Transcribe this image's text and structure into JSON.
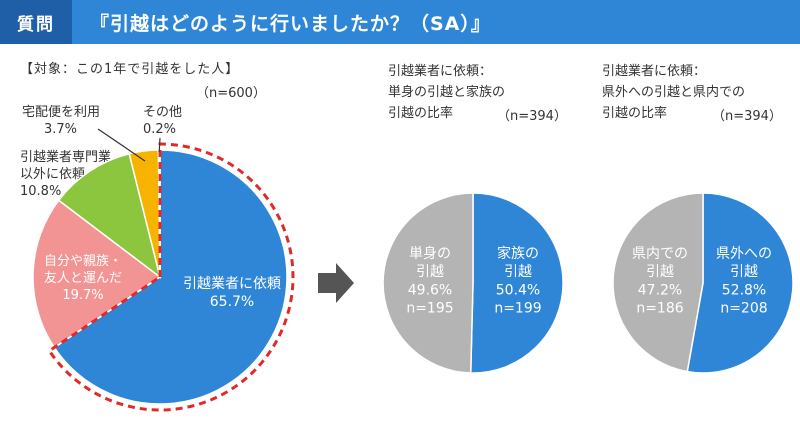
{
  "header": {
    "tag": "質問",
    "title": "『引越はどのように行いましたか？（SA）』"
  },
  "chart_data": [
    {
      "type": "pie",
      "subtitle": "【対象：この1年で引越をした人】",
      "n_label": "（n=600）",
      "slices": [
        {
          "label": "引越業者に依頼",
          "value": 65.7,
          "value_label": "65.7%",
          "color": "#2f86d6"
        },
        {
          "label": "自分や親族・友人と運んだ",
          "label_lines": [
            "自分や親族・",
            "友人と運んだ"
          ],
          "value": 19.7,
          "value_label": "19.7%",
          "color": "#f29494"
        },
        {
          "label": "引越業者専門業以外に依頼",
          "label_lines": [
            "引越業者専門業",
            "以外に依頼"
          ],
          "value": 10.8,
          "value_label": "10.8%",
          "color": "#8cc63f"
        },
        {
          "label": "宅配便を利用",
          "value": 3.7,
          "value_label": "3.7%",
          "color": "#f6b400"
        },
        {
          "label": "その他",
          "value": 0.2,
          "value_label": "0.2%",
          "color": "#d8d8d8"
        }
      ]
    },
    {
      "type": "pie",
      "title_lines": [
        "引越業者に依頼：",
        "単身の引越と家族の",
        "引越の比率"
      ],
      "n_label": "（n=394）",
      "slices": [
        {
          "label": "家族の引越",
          "label_lines": [
            "家族の",
            "引越"
          ],
          "value": 50.4,
          "value_label": "50.4%",
          "n": "n=199",
          "color": "#2f86d6"
        },
        {
          "label": "単身の引越",
          "label_lines": [
            "単身の",
            "引越"
          ],
          "value": 49.6,
          "value_label": "49.6%",
          "n": "n=195",
          "color": "#b4b4b4"
        }
      ]
    },
    {
      "type": "pie",
      "title_lines": [
        "引越業者に依頼：",
        "県外への引越と県内での",
        "引越の比率"
      ],
      "n_label": "（n=394）",
      "slices": [
        {
          "label": "県外への引越",
          "label_lines": [
            "県外への",
            "引越"
          ],
          "value": 52.8,
          "value_label": "52.8%",
          "n": "n=208",
          "color": "#2f86d6"
        },
        {
          "label": "県内での引越",
          "label_lines": [
            "県内での",
            "引越"
          ],
          "value": 47.2,
          "value_label": "47.2%",
          "n": "n=186",
          "color": "#b4b4b4"
        }
      ]
    }
  ],
  "colors": {
    "header": "#2f86d6",
    "header_tag": "#1f5fa8",
    "highlight_ring": "#e02a2a",
    "arrow": "#555555"
  }
}
